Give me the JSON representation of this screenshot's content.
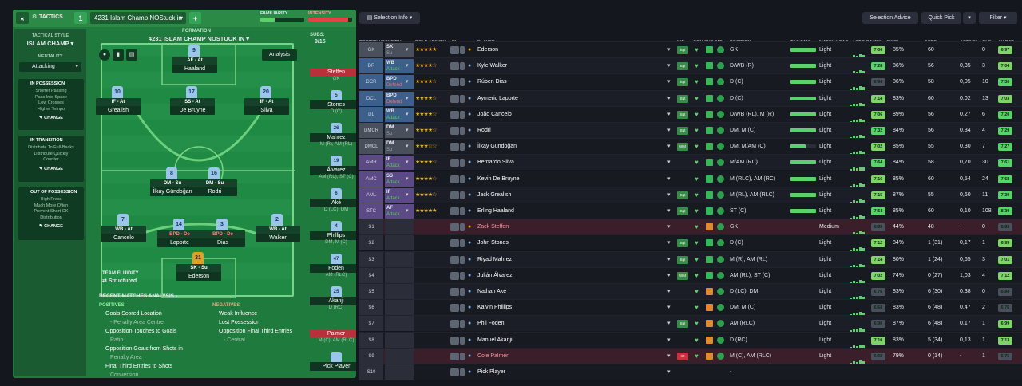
{
  "header": {
    "tactics_label": "TACTICS",
    "tactic_number": "1",
    "tactic_name": "4231 Islam Champ NOStuck in",
    "familiarity_label": "FAMILIARITY",
    "intensity_label": "INTENSITY",
    "familiarity_level": 0.32,
    "intensity_level": 0.9
  },
  "sidebar": {
    "style_label": "TACTICAL STYLE",
    "style_value": "ISLAM CHAMP",
    "mentality_label": "MENTALITY",
    "mentality_value": "Attacking",
    "in_possession": {
      "title": "IN POSSESSION",
      "lines": [
        "Shorter Passing",
        "Pass Into Space",
        "Low Crosses",
        "Higher Tempo"
      ],
      "change": "CHANGE"
    },
    "in_transition": {
      "title": "IN TRANSITION",
      "lines": [
        "Distribute To Full-Backs",
        "Distribute Quickly",
        "Counter"
      ],
      "change": "CHANGE"
    },
    "out_possession": {
      "title": "OUT OF POSSESSION",
      "lines": [
        "High Press",
        "Much More Often",
        "Prevent Short GK",
        "Distribution"
      ],
      "change": "CHANGE"
    }
  },
  "formation": {
    "label": "FORMATION",
    "name": "4231 ISLAM CHAMP NOSTUCK IN",
    "subs_label": "SUBS:",
    "subs_value": "9/15",
    "analysis": "Analysis"
  },
  "pitch_players": [
    {
      "num": "9",
      "role": "AF - At",
      "name": "Haaland"
    },
    {
      "num": "10",
      "role": "IF - At",
      "name": "Grealish"
    },
    {
      "num": "17",
      "role": "SS - At",
      "name": "De Bruyne"
    },
    {
      "num": "20",
      "role": "IF - At",
      "name": "Silva"
    },
    {
      "num": "8",
      "role": "DM - Su",
      "name": "İlkay Gündoğan"
    },
    {
      "num": "16",
      "role": "DM - Su",
      "name": "Rodri"
    },
    {
      "num": "7",
      "role": "WB - At",
      "name": "Cancelo"
    },
    {
      "num": "14",
      "role": "BPD - De",
      "name": "Laporte"
    },
    {
      "num": "3",
      "role": "BPD - De",
      "name": "Dias"
    },
    {
      "num": "2",
      "role": "WB - At",
      "name": "Walker"
    },
    {
      "num": "31",
      "role": "SK - Su",
      "name": "Ederson"
    }
  ],
  "team_fluidity": {
    "label": "TEAM FLUIDITY",
    "value": "Structured"
  },
  "subs_list": [
    {
      "num": "",
      "name": "Steffen",
      "pos": "GK"
    },
    {
      "num": "5",
      "name": "Stones",
      "pos": "D (C)"
    },
    {
      "num": "26",
      "name": "Mahrez",
      "pos": "M (R), AM (RL)"
    },
    {
      "num": "19",
      "name": "Álvarez",
      "pos": "AM (RL), ST (C)"
    },
    {
      "num": "6",
      "name": "Aké",
      "pos": "D (LC), DM"
    },
    {
      "num": "4",
      "name": "Phillips",
      "pos": "DM, M (C)"
    },
    {
      "num": "47",
      "name": "Foden",
      "pos": "AM (RLC)"
    },
    {
      "num": "25",
      "name": "Akanji",
      "pos": "D (RC)"
    },
    {
      "num": "",
      "name": "Palmer",
      "pos": "M (C), AM (RLC)"
    },
    {
      "num": "",
      "name": "Pick Player",
      "pos": ""
    }
  ],
  "analysis": {
    "title": "RECENT MATCHES ANALYSIS",
    "positives_label": "POSITIVES",
    "negatives_label": "NEGATIVES",
    "positives": [
      "Goals Scored Location",
      "- Penalty Area Centre",
      "Opposition Touches to Goals",
      "Ratio",
      "Opposition Goals from Shots in",
      "Penalty Area",
      "Final Third Entries to Shots",
      "Conversion"
    ],
    "negatives": [
      "Weak Influence",
      "Lost Possession",
      "Opposition Final Third Entries",
      "- Central"
    ]
  },
  "right": {
    "selection_info": "Selection Info",
    "selection_advice": "Selection Advice",
    "quick_pick": "Quick Pick",
    "filter": "Filter"
  },
  "columns": [
    "POSITION/ROLE/DU...",
    "ROLE ABILITY",
    "PI",
    "PLAYER",
    "INF",
    "CON",
    "SHP",
    "MO...",
    "POSITION",
    "TAC FAMI",
    "MATCH LOAD",
    "LAST 5 GAMES",
    "GWIN",
    "APPS",
    "ASTS/90",
    "GLS",
    "AV RAT"
  ],
  "rows": [
    {
      "pos": "GK",
      "role": "SK",
      "duty": "Su",
      "stars": "★★★★★",
      "name": "Ederson",
      "position": "GK",
      "load": "Light",
      "rating": "7.06",
      "gwin": "85%",
      "apps": "60",
      "asts": "-",
      "gls": "0",
      "av": "6.97",
      "inf": "Sgt"
    },
    {
      "pos": "DR",
      "role": "WB",
      "duty": "Attack",
      "stars": "★★★★☆",
      "name": "Kyle Walker",
      "position": "D/WB (R)",
      "load": "Light",
      "rating": "7.28",
      "gwin": "86%",
      "apps": "56",
      "asts": "0,35",
      "gls": "3",
      "av": "7.04",
      "inf": "Sgt"
    },
    {
      "pos": "DCR",
      "role": "BPD",
      "duty": "Defend",
      "stars": "★★★★☆",
      "name": "Rúben Dias",
      "position": "D (C)",
      "load": "Light",
      "rating": "6.94",
      "gwin": "86%",
      "apps": "58",
      "asts": "0,05",
      "gls": "10",
      "av": "7.30",
      "inf": "Sgt"
    },
    {
      "pos": "DCL",
      "role": "BPD",
      "duty": "Defend",
      "stars": "★★★★☆",
      "name": "Aymeric Laporte",
      "position": "D (C)",
      "load": "Light",
      "rating": "7.14",
      "gwin": "83%",
      "apps": "60",
      "asts": "0,02",
      "gls": "13",
      "av": "7.03",
      "inf": "Sgt"
    },
    {
      "pos": "DL",
      "role": "WB",
      "duty": "Attack",
      "stars": "★★★★☆",
      "name": "João Cancelo",
      "position": "D/WB (RL), M (R)",
      "load": "Light",
      "rating": "7.06",
      "gwin": "89%",
      "apps": "56",
      "asts": "0,27",
      "gls": "6",
      "av": "7.20",
      "inf": "Sgt"
    },
    {
      "pos": "DMCR",
      "role": "DM",
      "duty": "Su",
      "stars": "★★★★☆",
      "name": "Rodri",
      "position": "DM, M (C)",
      "load": "Light",
      "rating": "7.32",
      "gwin": "84%",
      "apps": "56",
      "asts": "0,34",
      "gls": "4",
      "av": "7.29",
      "inf": "Sgt"
    },
    {
      "pos": "DMCL",
      "role": "DM",
      "duty": "Su",
      "stars": "★★★☆☆",
      "name": "İlkay Gündoğan",
      "position": "DM, M/AM (C)",
      "load": "Light",
      "rating": "7.02",
      "gwin": "85%",
      "apps": "55",
      "asts": "0,30",
      "gls": "7",
      "av": "7.27",
      "inf": "WM"
    },
    {
      "pos": "AMR",
      "role": "IF",
      "duty": "Attack",
      "stars": "★★★★☆",
      "name": "Bernardo Silva",
      "position": "M/AM (RC)",
      "load": "Light",
      "rating": "7.64",
      "gwin": "84%",
      "apps": "58",
      "asts": "0,70",
      "gls": "30",
      "av": "7.61",
      "inf": ""
    },
    {
      "pos": "AMC",
      "role": "SS",
      "duty": "Attack",
      "stars": "★★★★☆",
      "name": "Kevin De Bruyne",
      "position": "M (RLC), AM (RC)",
      "load": "Light",
      "rating": "7.16",
      "gwin": "85%",
      "apps": "60",
      "asts": "0,54",
      "gls": "24",
      "av": "7.68",
      "inf": ""
    },
    {
      "pos": "AML",
      "role": "IF",
      "duty": "Attack",
      "stars": "★★★★☆",
      "name": "Jack Grealish",
      "position": "M (RL), AM (RLC)",
      "load": "Light",
      "rating": "7.15",
      "gwin": "87%",
      "apps": "55",
      "asts": "0,60",
      "gls": "11",
      "av": "7.30",
      "inf": "Sgt"
    },
    {
      "pos": "STC",
      "role": "AF",
      "duty": "Attack",
      "stars": "★★★★★",
      "name": "Erling Haaland",
      "position": "ST (C)",
      "load": "Light",
      "rating": "7.54",
      "gwin": "85%",
      "apps": "60",
      "asts": "0,10",
      "gls": "108",
      "av": "8.30",
      "inf": "Sgt"
    },
    {
      "pos": "S1",
      "role": "",
      "duty": "",
      "stars": "",
      "name": "Zack Steffen",
      "position": "GK",
      "load": "Medium",
      "rating": "6.89",
      "gwin": "44%",
      "apps": "48",
      "asts": "-",
      "gls": "0",
      "av": "6.89",
      "inf": ""
    },
    {
      "pos": "S2",
      "role": "",
      "duty": "",
      "stars": "",
      "name": "John Stones",
      "position": "D (C)",
      "load": "Light",
      "rating": "7.12",
      "gwin": "84%",
      "apps": "1 (31)",
      "asts": "0,17",
      "gls": "1",
      "av": "6.95",
      "inf": "Sgt"
    },
    {
      "pos": "S3",
      "role": "",
      "duty": "",
      "stars": "",
      "name": "Riyad Mahrez",
      "position": "M (R), AM (RL)",
      "load": "Light",
      "rating": "7.14",
      "gwin": "80%",
      "apps": "1 (24)",
      "asts": "0,65",
      "gls": "3",
      "av": "7.01",
      "inf": "Sgt"
    },
    {
      "pos": "S4",
      "role": "",
      "duty": "",
      "stars": "",
      "name": "Julián Álvarez",
      "position": "AM (RL), ST (C)",
      "load": "Light",
      "rating": "7.02",
      "gwin": "74%",
      "apps": "0 (27)",
      "asts": "1,03",
      "gls": "4",
      "av": "7.12",
      "inf": "WM"
    },
    {
      "pos": "S5",
      "role": "",
      "duty": "",
      "stars": "",
      "name": "Nathan Aké",
      "position": "D (LC), DM",
      "load": "Light",
      "rating": "6.76",
      "gwin": "83%",
      "apps": "6 (30)",
      "asts": "0,38",
      "gls": "0",
      "av": "6.84",
      "inf": ""
    },
    {
      "pos": "S6",
      "role": "",
      "duty": "",
      "stars": "",
      "name": "Kalvin Phillips",
      "position": "DM, M (C)",
      "load": "Light",
      "rating": "6.64",
      "gwin": "83%",
      "apps": "6 (48)",
      "asts": "0,47",
      "gls": "2",
      "av": "6.76",
      "inf": ""
    },
    {
      "pos": "S7",
      "role": "",
      "duty": "",
      "stars": "",
      "name": "Phil Foden",
      "position": "AM (RLC)",
      "load": "Light",
      "rating": "6.90",
      "gwin": "87%",
      "apps": "6 (48)",
      "asts": "0,17",
      "gls": "1",
      "av": "6.99",
      "inf": "Sgt"
    },
    {
      "pos": "S8",
      "role": "",
      "duty": "",
      "stars": "",
      "name": "Manuel Akanji",
      "position": "D (RC)",
      "load": "Light",
      "rating": "7.10",
      "gwin": "83%",
      "apps": "5 (34)",
      "asts": "0,13",
      "gls": "1",
      "av": "7.13",
      "inf": ""
    },
    {
      "pos": "S9",
      "role": "",
      "duty": "",
      "stars": "",
      "name": "Cole Palmer",
      "position": "M (C), AM (RLC)",
      "load": "Light",
      "rating": "6.68",
      "gwin": "79%",
      "apps": "0 (14)",
      "asts": "-",
      "gls": "1",
      "av": "6.75",
      "inf": "Int"
    },
    {
      "pos": "S10",
      "role": "",
      "duty": "",
      "stars": "",
      "name": "Pick Player",
      "position": "-",
      "load": "",
      "rating": "",
      "gwin": "",
      "apps": "",
      "asts": "",
      "gls": "",
      "av": "",
      "inf": ""
    }
  ],
  "colors": {
    "green": "#5ad16a",
    "red": "#c8323e",
    "gk": "#4a4f5c",
    "def": "#3c6a9a",
    "mid": "#4a4f5c",
    "att": "#5f4a8c"
  }
}
